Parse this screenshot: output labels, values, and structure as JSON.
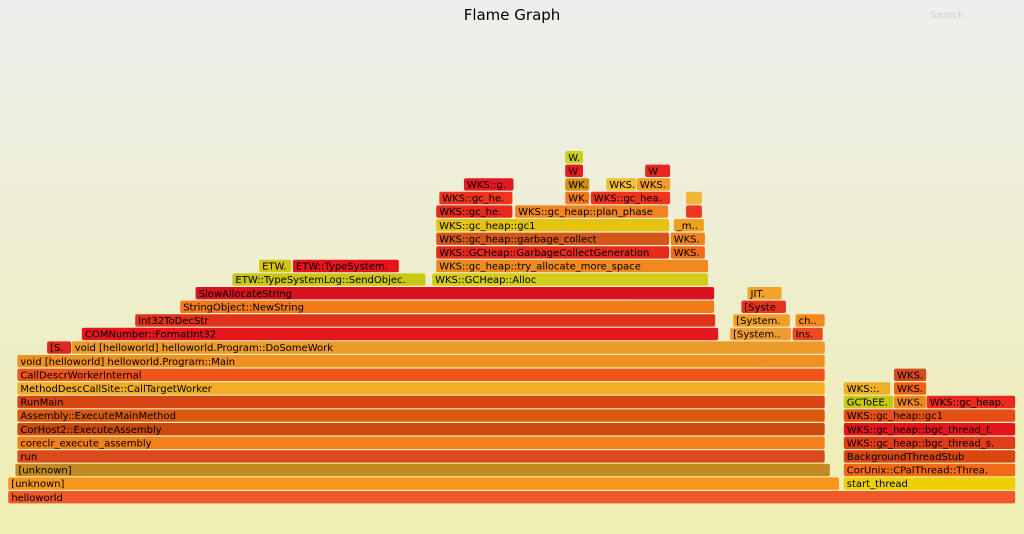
{
  "header": {
    "title": "Flame Graph",
    "search_label": "Search"
  },
  "chart_data": {
    "type": "flamegraph",
    "title": "Flame Graph",
    "units": "percent of total samples per frame, depth 0 = bottom",
    "frames": [
      {
        "label": "helloworld",
        "depth": 0,
        "start": 0.8,
        "width": 98.4,
        "color": "#f05a2a"
      },
      {
        "label": "[unknown]",
        "depth": 1,
        "start": 0.8,
        "width": 81.2,
        "color": "#f8961e"
      },
      {
        "label": "start_thread",
        "depth": 1,
        "start": 82.4,
        "width": 16.8,
        "color": "#eed000"
      },
      {
        "label": "[unknown]",
        "depth": 2,
        "start": 1.5,
        "width": 79.6,
        "color": "#c48a22"
      },
      {
        "label": "CorUnix::CPalThread::Threa...",
        "depth": 2,
        "start": 82.4,
        "width": 16.8,
        "color": "#f26a18"
      },
      {
        "label": "run",
        "depth": 3,
        "start": 1.7,
        "width": 78.9,
        "color": "#db4a1d"
      },
      {
        "label": "BackgroundThreadStub",
        "depth": 3,
        "start": 82.4,
        "width": 16.8,
        "color": "#d6480e"
      },
      {
        "label": "coreclr_execute_assembly",
        "depth": 4,
        "start": 1.7,
        "width": 78.9,
        "color": "#f2801a"
      },
      {
        "label": "WKS::gc_heap::bgc_thread_s...",
        "depth": 4,
        "start": 82.4,
        "width": 16.8,
        "color": "#e23b1a"
      },
      {
        "label": "CorHost2::ExecuteAssembly",
        "depth": 5,
        "start": 1.7,
        "width": 78.9,
        "color": "#cc4a10"
      },
      {
        "label": "WKS::gc_heap::bgc_thread_f...",
        "depth": 5,
        "start": 82.4,
        "width": 16.8,
        "color": "#e4161c"
      },
      {
        "label": "Assembly::ExecuteMainMethod",
        "depth": 6,
        "start": 1.7,
        "width": 78.9,
        "color": "#da5a10"
      },
      {
        "label": "WKS::gc_heap::gc1",
        "depth": 6,
        "start": 82.4,
        "width": 16.8,
        "color": "#e25016"
      },
      {
        "label": "RunMain",
        "depth": 7,
        "start": 1.7,
        "width": 78.9,
        "color": "#d64612"
      },
      {
        "label": "GCToEE...",
        "depth": 7,
        "start": 82.4,
        "width": 4.9,
        "color": "#c8c814"
      },
      {
        "label": "WKS...",
        "depth": 7,
        "start": 87.3,
        "width": 3.2,
        "color": "#f08a1e"
      },
      {
        "label": "WKS::gc_heap...",
        "depth": 7,
        "start": 90.5,
        "width": 8.7,
        "color": "#e82a20"
      },
      {
        "label": "MethodDescCallSite::CallTargetWorker",
        "depth": 8,
        "start": 1.7,
        "width": 78.9,
        "color": "#f2ae24"
      },
      {
        "label": "WKS::...",
        "depth": 8,
        "start": 82.4,
        "width": 4.6,
        "color": "#f0b026"
      },
      {
        "label": "WKS...",
        "depth": 8,
        "start": 87.3,
        "width": 3.2,
        "color": "#f26010"
      },
      {
        "label": "CallDescrWorkerInternal",
        "depth": 9,
        "start": 1.7,
        "width": 78.9,
        "color": "#f05418"
      },
      {
        "label": "WKS...",
        "depth": 9,
        "start": 87.3,
        "width": 3.2,
        "color": "#d44a22"
      },
      {
        "label": "void [helloworld] helloworld.Program::Main",
        "depth": 10,
        "start": 1.7,
        "width": 78.9,
        "color": "#f09020"
      },
      {
        "label": "[S...",
        "depth": 11,
        "start": 4.6,
        "width": 2.4,
        "color": "#e02820"
      },
      {
        "label": "void [helloworld] helloworld.Program::DoSomeWork",
        "depth": 11,
        "start": 7.0,
        "width": 73.6,
        "color": "#ec9a2a"
      },
      {
        "label": "COMNumber::FormatInt32",
        "depth": 12,
        "start": 8.0,
        "width": 62.2,
        "color": "#e4181e"
      },
      {
        "label": "[System...",
        "depth": 12,
        "start": 71.3,
        "width": 6.0,
        "color": "#f29a32"
      },
      {
        "label": "Ins...",
        "depth": 12,
        "start": 77.4,
        "width": 3.0,
        "color": "#ee4a20"
      },
      {
        "label": "Int32ToDecStr",
        "depth": 13,
        "start": 13.2,
        "width": 56.7,
        "color": "#e0321a"
      },
      {
        "label": "[System...",
        "depth": 13,
        "start": 71.6,
        "width": 5.6,
        "color": "#f0a02a"
      },
      {
        "label": "ch...",
        "depth": 13,
        "start": 77.7,
        "width": 2.9,
        "color": "#f28820"
      },
      {
        "label": "StringObject::NewString",
        "depth": 14,
        "start": 17.6,
        "width": 52.2,
        "color": "#f47a1a"
      },
      {
        "label": "[Syste...",
        "depth": 14,
        "start": 72.4,
        "width": 4.4,
        "color": "#e8321e"
      },
      {
        "label": "SlowAllocateString",
        "depth": 15,
        "start": 19.1,
        "width": 50.7,
        "color": "#d8121e"
      },
      {
        "label": "JIT...",
        "depth": 15,
        "start": 73.0,
        "width": 3.4,
        "color": "#f2a42a"
      },
      {
        "label": "ETW::TypeSystemLog::SendObjec...",
        "depth": 16,
        "start": 22.7,
        "width": 18.9,
        "color": "#c8c814"
      },
      {
        "label": "WKS::GCHeap::Alloc",
        "depth": 16,
        "start": 42.2,
        "width": 27.0,
        "color": "#d0cc18"
      },
      {
        "label": "ETW...",
        "depth": 17,
        "start": 25.3,
        "width": 3.2,
        "color": "#d4c418"
      },
      {
        "label": "ETW::TypeSystem...",
        "depth": 17,
        "start": 28.6,
        "width": 10.4,
        "color": "#e8141c"
      },
      {
        "label": "WKS::gc_heap::try_allocate_more_space",
        "depth": 17,
        "start": 42.6,
        "width": 26.6,
        "color": "#f08a1e"
      },
      {
        "label": "WKS::GCHeap::GarbageCollectGeneration",
        "depth": 18,
        "start": 42.6,
        "width": 22.8,
        "color": "#e82a1e"
      },
      {
        "label": "WKS...",
        "depth": 18,
        "start": 65.5,
        "width": 3.4,
        "color": "#f26a18"
      },
      {
        "label": "WKS::gc_heap::garbage_collect",
        "depth": 19,
        "start": 42.6,
        "width": 22.8,
        "color": "#d45618"
      },
      {
        "label": "WKS...",
        "depth": 19,
        "start": 65.5,
        "width": 3.4,
        "color": "#f08420"
      },
      {
        "label": "WKS::gc_heap::gc1",
        "depth": 20,
        "start": 42.6,
        "width": 22.8,
        "color": "#e4c410"
      },
      {
        "label": "_m...",
        "depth": 20,
        "start": 65.8,
        "width": 3.0,
        "color": "#f0a020"
      },
      {
        "label": "WKS::gc_he...",
        "depth": 21,
        "start": 42.6,
        "width": 7.5,
        "color": "#e82a1e"
      },
      {
        "label": "WKS::gc_heap::plan_phase",
        "depth": 21,
        "start": 50.3,
        "width": 15.0,
        "color": "#f08420"
      },
      {
        "label": "p...",
        "depth": 21,
        "start": 67.0,
        "width": 1.6,
        "color": "#f0341e"
      },
      {
        "label": "WKS::gc_he...",
        "depth": 22,
        "start": 42.9,
        "width": 7.2,
        "color": "#ee341e"
      },
      {
        "label": "WK...",
        "depth": 22,
        "start": 55.2,
        "width": 2.4,
        "color": "#f07a1e"
      },
      {
        "label": "WKS::gc_hea...",
        "depth": 22,
        "start": 57.7,
        "width": 7.8,
        "color": "#f0341e"
      },
      {
        "label": "d...",
        "depth": 22,
        "start": 67.0,
        "width": 1.6,
        "color": "#f2b632"
      },
      {
        "label": "WKS::g...",
        "depth": 23,
        "start": 45.3,
        "width": 4.9,
        "color": "#e41a22"
      },
      {
        "label": "WK...",
        "depth": 23,
        "start": 55.2,
        "width": 2.4,
        "color": "#d09010"
      },
      {
        "label": "WKS..",
        "depth": 23,
        "start": 59.2,
        "width": 3.0,
        "color": "#f0c030"
      },
      {
        "label": "WKS..",
        "depth": 23,
        "start": 62.2,
        "width": 3.3,
        "color": "#f0a02a"
      },
      {
        "label": "W",
        "depth": 24,
        "start": 55.2,
        "width": 1.8,
        "color": "#e81a20"
      },
      {
        "label": "W",
        "depth": 24,
        "start": 63.0,
        "width": 2.5,
        "color": "#e8281e"
      },
      {
        "label": "W..",
        "depth": 25,
        "start": 55.2,
        "width": 1.8,
        "color": "#c8d018"
      }
    ]
  }
}
